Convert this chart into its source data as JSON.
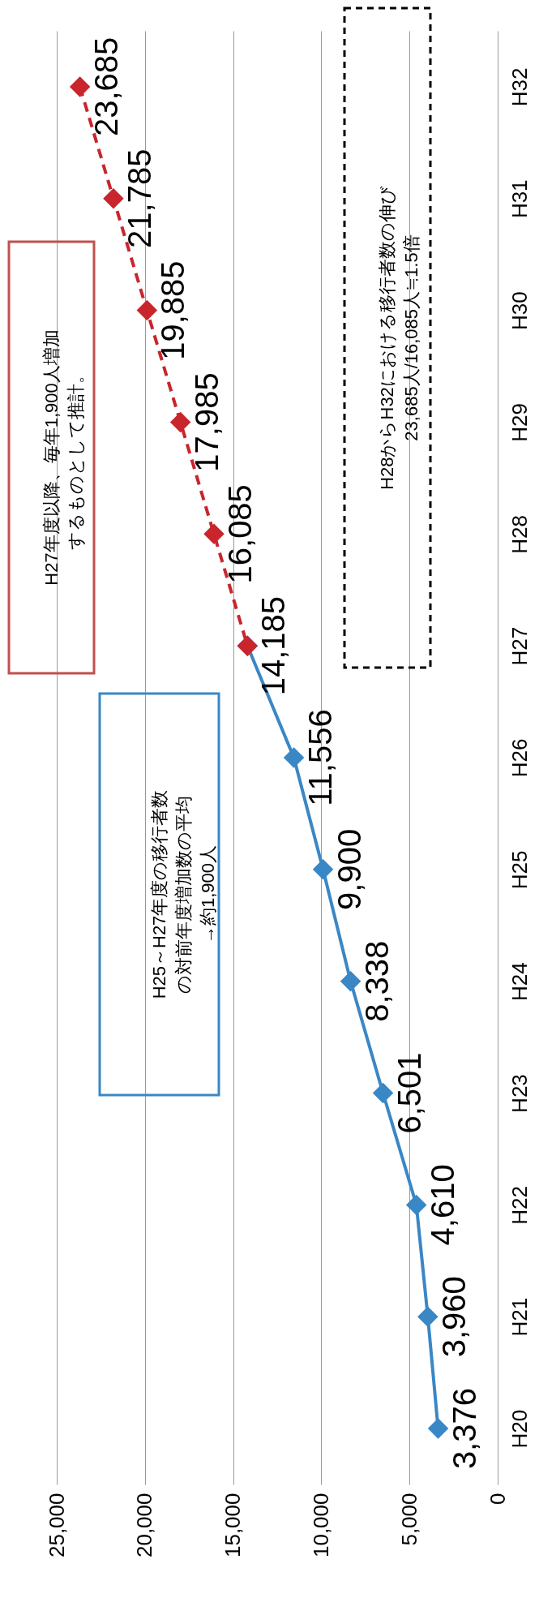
{
  "chart_data": {
    "type": "line",
    "orientation": "horizontal",
    "categories": [
      "H32",
      "H31",
      "H30",
      "H29",
      "H28",
      "H27",
      "H26",
      "H25",
      "H24",
      "H23",
      "H22",
      "H21",
      "H20"
    ],
    "series": [
      {
        "color": "#3a87c6",
        "line_style": "solid",
        "values": [
          null,
          null,
          null,
          null,
          null,
          14185,
          11556,
          9900,
          8338,
          6501,
          4610,
          3960,
          3376
        ],
        "value_labels": [
          null,
          null,
          null,
          null,
          null,
          "14,185",
          "11,556",
          "9,900",
          "8,338",
          "6,501",
          "4,610",
          "3,960",
          "3,376"
        ]
      },
      {
        "color": "#c8262c",
        "line_style": "dashed",
        "values": [
          23685,
          21785,
          19885,
          17985,
          16085,
          14185,
          null,
          null,
          null,
          null,
          null,
          null,
          null
        ],
        "value_labels": [
          "23,685",
          "21,785",
          "19,885",
          "17,985",
          "16,085",
          null,
          null,
          null,
          null,
          null,
          null,
          null,
          null
        ]
      }
    ],
    "xlim": [
      25000,
      0
    ],
    "xticks": [
      {
        "value": 25000,
        "label": "25,000"
      },
      {
        "value": 20000,
        "label": "20,000"
      },
      {
        "value": 15000,
        "label": "15,000"
      },
      {
        "value": 10000,
        "label": "10,000"
      },
      {
        "value": 5000,
        "label": "5,000"
      },
      {
        "value": 0,
        "label": "0"
      }
    ],
    "grid": "x",
    "marker": "diamond",
    "annotations": [
      "H25～H27年度の移行者数の対前年度増加数の平均→約1,900人",
      "H27年度以降、毎年1,900人増加するものとして推計。",
      "H28からH32における移行者数の伸び23,685人/16,085人≒1.5倍"
    ]
  }
}
